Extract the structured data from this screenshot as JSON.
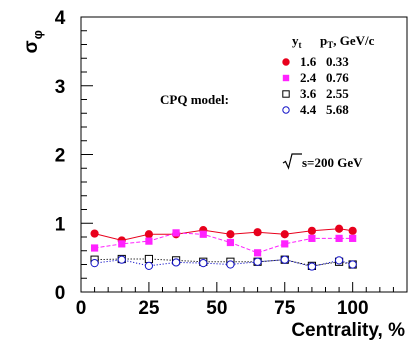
{
  "chart_data": {
    "type": "line",
    "xlabel": "Centrality, %",
    "ylabel_base": "σ",
    "ylabel_sub": "φ",
    "xlim": [
      0,
      120
    ],
    "ylim": [
      0,
      4
    ],
    "xticks": [
      0,
      25,
      50,
      75,
      100
    ],
    "yticks": [
      0,
      1,
      2,
      3,
      4
    ],
    "x": [
      5,
      15,
      25,
      35,
      45,
      55,
      65,
      75,
      85,
      95,
      100
    ],
    "legend_header": {
      "col1_base": "y",
      "col1_sub": "t",
      "col2_base": "p",
      "col2_sub": "T",
      "col2_rest": ", GeV/c"
    },
    "series": [
      {
        "col1": "1.6",
        "col2": "0.33",
        "color": "#e8001c",
        "marker": "filled-circle",
        "line": "solid",
        "values": [
          0.85,
          0.75,
          0.84,
          0.84,
          0.9,
          0.84,
          0.87,
          0.84,
          0.89,
          0.92,
          0.89
        ]
      },
      {
        "col1": "2.4",
        "col2": "0.76",
        "color": "#ff22ff",
        "marker": "filled-square",
        "line": "dashed",
        "values": [
          0.64,
          0.7,
          0.74,
          0.86,
          0.84,
          0.72,
          0.57,
          0.7,
          0.78,
          0.78,
          0.78
        ]
      },
      {
        "col1": "3.6",
        "col2": "2.55",
        "color": "#000000",
        "marker": "open-square",
        "line": "dotted",
        "values": [
          0.47,
          0.48,
          0.48,
          0.46,
          0.44,
          0.44,
          0.44,
          0.47,
          0.38,
          0.44,
          0.4
        ]
      },
      {
        "col1": "4.4",
        "col2": "5.68",
        "color": "#1414c8",
        "marker": "open-circle",
        "line": "dotted",
        "values": [
          0.42,
          0.47,
          0.38,
          0.43,
          0.42,
          0.4,
          0.44,
          0.47,
          0.37,
          0.46,
          0.4
        ]
      }
    ],
    "annotations": {
      "model": "CPQ model:",
      "energy_rest": "s=200 GeV"
    }
  }
}
